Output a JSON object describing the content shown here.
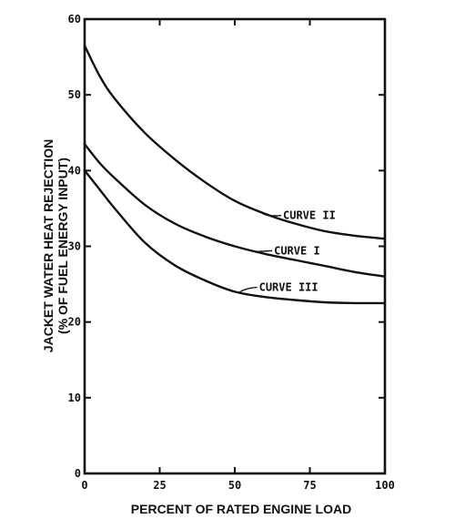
{
  "chart_data": {
    "type": "line",
    "title": "",
    "xlabel": "PERCENT OF RATED ENGINE LOAD",
    "ylabel": [
      "JACKET WATER HEAT REJECTION",
      "(% OF FUEL ENERGY INPUT)"
    ],
    "xlim": [
      0,
      100
    ],
    "ylim": [
      0,
      60
    ],
    "x_ticks": [
      0,
      25,
      50,
      75,
      100
    ],
    "y_ticks": [
      0,
      10,
      20,
      30,
      40,
      50,
      60
    ],
    "grid": false,
    "series": [
      {
        "name": "CURVE II",
        "x": [
          0,
          5,
          10,
          20,
          30,
          40,
          50,
          60,
          70,
          80,
          90,
          100
        ],
        "y": [
          56.5,
          52.5,
          49.5,
          45,
          41.5,
          38.5,
          36,
          34.3,
          33,
          32,
          31.4,
          31
        ]
      },
      {
        "name": "CURVE I",
        "x": [
          0,
          5,
          10,
          20,
          30,
          40,
          50,
          60,
          70,
          80,
          90,
          100
        ],
        "y": [
          43.5,
          41,
          39,
          35.5,
          33,
          31.3,
          30,
          29,
          28.2,
          27.4,
          26.6,
          26
        ]
      },
      {
        "name": "CURVE III",
        "x": [
          0,
          5,
          10,
          20,
          30,
          40,
          50,
          60,
          70,
          80,
          90,
          100
        ],
        "y": [
          40,
          37.5,
          35,
          30.5,
          27.5,
          25.5,
          24,
          23.3,
          22.9,
          22.6,
          22.5,
          22.5
        ]
      }
    ],
    "annotations": [
      {
        "text": "CURVE II",
        "series": "CURVE II"
      },
      {
        "text": "CURVE I",
        "series": "CURVE I"
      },
      {
        "text": "CURVE III",
        "series": "CURVE III"
      }
    ]
  }
}
